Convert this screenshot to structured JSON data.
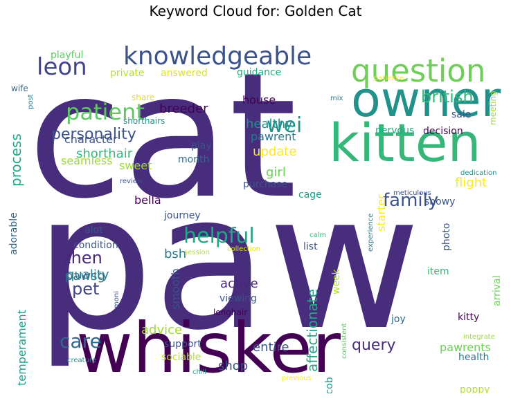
{
  "title": "Keyword Cloud for: Golden Cat",
  "words": [
    {
      "text": "cat",
      "color": "#472d7b"
    },
    {
      "text": "paw",
      "color": "#472d7b"
    },
    {
      "text": "whisker",
      "color": "#440154"
    },
    {
      "text": "kitten",
      "color": "#35b779"
    },
    {
      "text": "owner",
      "color": "#21918c"
    },
    {
      "text": "question",
      "color": "#6ece58"
    },
    {
      "text": "knowledgeable",
      "color": "#3b528b"
    },
    {
      "text": "leon",
      "color": "#414487"
    },
    {
      "text": "patient",
      "color": "#5ec962"
    },
    {
      "text": "family",
      "color": "#3b528b"
    },
    {
      "text": "helpful",
      "color": "#22a884"
    },
    {
      "text": "care",
      "color": "#31688e"
    },
    {
      "text": "wei",
      "color": "#21918c"
    },
    {
      "text": "british",
      "color": "#35b779"
    },
    {
      "text": "personality",
      "color": "#3b528b"
    },
    {
      "text": "zhen",
      "color": "#482878"
    },
    {
      "text": "pet",
      "color": "#414487"
    },
    {
      "text": "query",
      "color": "#472d7b"
    },
    {
      "text": "affectionate",
      "color": "#22a884"
    },
    {
      "text": "process",
      "color": "#22a884"
    },
    {
      "text": "shorthair",
      "color": "#35b779"
    },
    {
      "text": "healthy",
      "color": "#21918c"
    },
    {
      "text": "update",
      "color": "#fde725"
    },
    {
      "text": "breeder",
      "color": "#440154"
    },
    {
      "text": "active",
      "color": "#482878"
    },
    {
      "text": "flight",
      "color": "#fde725"
    },
    {
      "text": "girl",
      "color": "#6ece58"
    },
    {
      "text": "quality",
      "color": "#2a788e"
    },
    {
      "text": "helpful2",
      "color": "#22a884"
    },
    {
      "text": "pawsg",
      "color": "#2a788e"
    },
    {
      "text": "smooth",
      "color": "#3b528b"
    },
    {
      "text": "bsh",
      "color": "#2a788e"
    },
    {
      "text": "advice",
      "color": "#a0da39"
    },
    {
      "text": "temperament",
      "color": "#1f9e89"
    },
    {
      "text": "entire",
      "color": "#3b528b"
    },
    {
      "text": "shop",
      "color": "#3b528b"
    },
    {
      "text": "pawrents",
      "color": "#6ece58"
    },
    {
      "text": "pleasure",
      "color": "#31688e"
    },
    {
      "text": "friend",
      "color": "#1f9e89"
    },
    {
      "text": "bella",
      "color": "#440154"
    },
    {
      "text": "house",
      "color": "#440154"
    },
    {
      "text": "pawrent",
      "color": "#2a788e"
    },
    {
      "text": "nervous",
      "color": "#22a884"
    },
    {
      "text": "decision",
      "color": "#440154"
    },
    {
      "text": "sale",
      "color": "#3b528b"
    },
    {
      "text": "meeting",
      "color": "#a0da39"
    },
    {
      "text": "sweet",
      "color": "#a0da39"
    },
    {
      "text": "seamless",
      "color": "#a0da39"
    },
    {
      "text": "character",
      "color": "#3b528b"
    },
    {
      "text": "month",
      "color": "#31688e"
    },
    {
      "text": "play",
      "color": "#3b528b"
    },
    {
      "text": "purchase",
      "color": "#3b528b"
    },
    {
      "text": "cage",
      "color": "#1f9e89"
    },
    {
      "text": "snowy",
      "color": "#3b528b"
    },
    {
      "text": "starter",
      "color": "#fde725"
    },
    {
      "text": "journey",
      "color": "#3b528b"
    },
    {
      "text": "alot",
      "color": "#3b528b"
    },
    {
      "text": "condition",
      "color": "#3b528b"
    },
    {
      "text": "list",
      "color": "#3b528b"
    },
    {
      "text": "photo",
      "color": "#3b528b"
    },
    {
      "text": "adorable",
      "color": "#31688e"
    },
    {
      "text": "viewing",
      "color": "#3b528b"
    },
    {
      "text": "longhair",
      "color": "#440154"
    },
    {
      "text": "week",
      "color": "#b5de2b"
    },
    {
      "text": "item",
      "color": "#35b779"
    },
    {
      "text": "arrival",
      "color": "#6ece58"
    },
    {
      "text": "kitty",
      "color": "#440154"
    },
    {
      "text": "joy",
      "color": "#31688e"
    },
    {
      "text": "support",
      "color": "#3b528b"
    },
    {
      "text": "sociable",
      "color": "#b5de2b"
    },
    {
      "text": "health",
      "color": "#2a788e"
    },
    {
      "text": "poppy",
      "color": "#b5de2b"
    },
    {
      "text": "provide",
      "color": "#3b528b"
    },
    {
      "text": "jacob",
      "color": "#21918c"
    },
    {
      "text": "pawer",
      "color": "#3b528b"
    },
    {
      "text": "playful",
      "color": "#5ec962"
    },
    {
      "text": "private",
      "color": "#b5de2b"
    },
    {
      "text": "answered",
      "color": "#dce319"
    },
    {
      "text": "guidance",
      "color": "#22a884"
    },
    {
      "text": "wife",
      "color": "#31688e"
    },
    {
      "text": "share",
      "color": "#dce319"
    },
    {
      "text": "shorthairs",
      "color": "#21918c"
    },
    {
      "text": "post",
      "color": "#2a788e"
    },
    {
      "text": "mix",
      "color": "#2a788e"
    },
    {
      "text": "patience",
      "color": "#fde725"
    },
    {
      "text": "review",
      "color": "#3b528b"
    },
    {
      "text": "dedication",
      "color": "#21918c"
    },
    {
      "text": "meticulous",
      "color": "#3b528b"
    },
    {
      "text": "experience",
      "color": "#2a788e"
    },
    {
      "text": "calm",
      "color": "#35b779"
    },
    {
      "text": "session",
      "color": "#b5de2b"
    },
    {
      "text": "collection",
      "color": "#dce319"
    },
    {
      "text": "moni",
      "color": "#3b528b"
    },
    {
      "text": "integrate",
      "color": "#a0da39"
    },
    {
      "text": "consistent",
      "color": "#5ec962"
    },
    {
      "text": "creature",
      "color": "#21918c"
    },
    {
      "text": "chill",
      "color": "#22a884"
    },
    {
      "text": "previous",
      "color": "#fde725"
    },
    {
      "text": "deal",
      "color": "#440154"
    },
    {
      "text": "fuss",
      "color": "#21918c"
    },
    {
      "text": "peaceful",
      "color": "#440154"
    }
  ]
}
